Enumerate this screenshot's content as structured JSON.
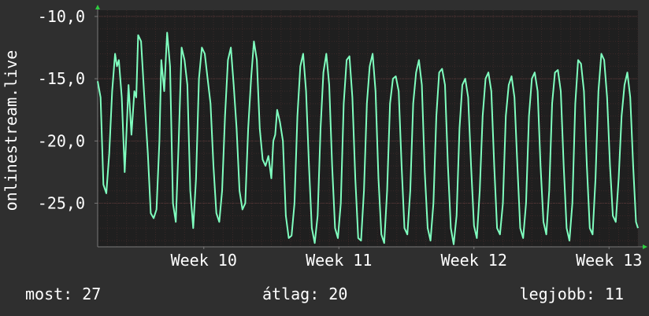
{
  "chart_data": {
    "type": "line",
    "ylabel": "onlinestream.live",
    "ylim": [
      -28.5,
      -9.5
    ],
    "yticks": [
      -10,
      -15,
      -20,
      -25
    ],
    "ytick_labels": [
      "-10,0",
      "-15,0",
      "-20,0",
      "-25,0"
    ],
    "xlim": [
      0,
      28
    ],
    "xticks": [
      {
        "x": 5.5,
        "label": "Week 10"
      },
      {
        "x": 12.5,
        "label": "Week 11"
      },
      {
        "x": 19.5,
        "label": "Week 12"
      },
      {
        "x": 26.5,
        "label": "Week 13"
      }
    ],
    "grid": true,
    "colors": {
      "line": "#7fffbf",
      "plot_bg": "#1f1f1f",
      "grid": "#3a2828",
      "axis": "#7a7a7a",
      "arrow": "#2ecc40"
    },
    "series": [
      {
        "values": [
          [
            0.0,
            -15.2
          ],
          [
            0.15,
            -16.5
          ],
          [
            0.3,
            -23.5
          ],
          [
            0.45,
            -24.2
          ],
          [
            0.6,
            -21
          ],
          [
            0.75,
            -16
          ],
          [
            0.9,
            -13
          ],
          [
            1.0,
            -14
          ],
          [
            1.1,
            -13.5
          ],
          [
            1.25,
            -16.5
          ],
          [
            1.4,
            -22.5
          ],
          [
            1.5,
            -19
          ],
          [
            1.6,
            -15.5
          ],
          [
            1.75,
            -19.5
          ],
          [
            1.9,
            -16
          ],
          [
            2.0,
            -16.5
          ],
          [
            2.1,
            -11.5
          ],
          [
            2.25,
            -12
          ],
          [
            2.4,
            -16
          ],
          [
            2.6,
            -21
          ],
          [
            2.75,
            -25.8
          ],
          [
            2.9,
            -26.2
          ],
          [
            3.05,
            -25.5
          ],
          [
            3.2,
            -20
          ],
          [
            3.3,
            -13.5
          ],
          [
            3.45,
            -16
          ],
          [
            3.6,
            -11.3
          ],
          [
            3.75,
            -14
          ],
          [
            3.9,
            -25
          ],
          [
            4.05,
            -26.5
          ],
          [
            4.2,
            -20
          ],
          [
            4.35,
            -12.5
          ],
          [
            4.5,
            -13.5
          ],
          [
            4.65,
            -15.5
          ],
          [
            4.8,
            -24
          ],
          [
            4.95,
            -27
          ],
          [
            5.1,
            -23
          ],
          [
            5.25,
            -15
          ],
          [
            5.4,
            -12.5
          ],
          [
            5.55,
            -13
          ],
          [
            5.7,
            -15
          ],
          [
            5.85,
            -17
          ],
          [
            6.0,
            -22
          ],
          [
            6.15,
            -25.8
          ],
          [
            6.3,
            -26.5
          ],
          [
            6.45,
            -24
          ],
          [
            6.6,
            -18
          ],
          [
            6.75,
            -13.5
          ],
          [
            6.9,
            -12.5
          ],
          [
            7.05,
            -15.5
          ],
          [
            7.2,
            -19
          ],
          [
            7.35,
            -24
          ],
          [
            7.5,
            -25.5
          ],
          [
            7.65,
            -25
          ],
          [
            7.8,
            -19
          ],
          [
            7.95,
            -15
          ],
          [
            8.1,
            -12
          ],
          [
            8.25,
            -13.5
          ],
          [
            8.4,
            -19
          ],
          [
            8.55,
            -21.5
          ],
          [
            8.7,
            -22
          ],
          [
            8.85,
            -21.2
          ],
          [
            9.0,
            -23
          ],
          [
            9.1,
            -20
          ],
          [
            9.2,
            -19.5
          ],
          [
            9.3,
            -17.5
          ],
          [
            9.45,
            -18.5
          ],
          [
            9.6,
            -20
          ],
          [
            9.75,
            -26
          ],
          [
            9.9,
            -27.8
          ],
          [
            10.05,
            -27.6
          ],
          [
            10.2,
            -25
          ],
          [
            10.35,
            -18
          ],
          [
            10.5,
            -14
          ],
          [
            10.65,
            -13
          ],
          [
            10.8,
            -16
          ],
          [
            10.95,
            -22
          ],
          [
            11.1,
            -27
          ],
          [
            11.25,
            -28.2
          ],
          [
            11.4,
            -26
          ],
          [
            11.55,
            -19
          ],
          [
            11.7,
            -14.5
          ],
          [
            11.85,
            -13
          ],
          [
            12.0,
            -15.5
          ],
          [
            12.15,
            -22
          ],
          [
            12.3,
            -27
          ],
          [
            12.45,
            -27.8
          ],
          [
            12.6,
            -25
          ],
          [
            12.75,
            -17
          ],
          [
            12.9,
            -13.5
          ],
          [
            13.05,
            -13.2
          ],
          [
            13.2,
            -16.5
          ],
          [
            13.35,
            -23
          ],
          [
            13.5,
            -27.8
          ],
          [
            13.65,
            -28
          ],
          [
            13.8,
            -24
          ],
          [
            13.95,
            -17
          ],
          [
            14.1,
            -14
          ],
          [
            14.25,
            -13
          ],
          [
            14.4,
            -16
          ],
          [
            14.55,
            -23
          ],
          [
            14.7,
            -27.5
          ],
          [
            14.85,
            -28.2
          ],
          [
            15.0,
            -24
          ],
          [
            15.15,
            -17
          ],
          [
            15.3,
            -15
          ],
          [
            15.45,
            -14.8
          ],
          [
            15.6,
            -16
          ],
          [
            15.75,
            -22
          ],
          [
            15.9,
            -27
          ],
          [
            16.05,
            -27.5
          ],
          [
            16.2,
            -24
          ],
          [
            16.35,
            -17
          ],
          [
            16.5,
            -14.5
          ],
          [
            16.65,
            -13.5
          ],
          [
            16.8,
            -15.5
          ],
          [
            16.95,
            -22.5
          ],
          [
            17.1,
            -27
          ],
          [
            17.25,
            -28
          ],
          [
            17.4,
            -25
          ],
          [
            17.55,
            -18
          ],
          [
            17.7,
            -14.5
          ],
          [
            17.85,
            -14.2
          ],
          [
            18.0,
            -15.5
          ],
          [
            18.15,
            -22
          ],
          [
            18.3,
            -27
          ],
          [
            18.45,
            -28.3
          ],
          [
            18.6,
            -26
          ],
          [
            18.75,
            -19
          ],
          [
            18.9,
            -15.5
          ],
          [
            19.05,
            -15
          ],
          [
            19.2,
            -16.5
          ],
          [
            19.35,
            -22
          ],
          [
            19.5,
            -26.8
          ],
          [
            19.65,
            -27.8
          ],
          [
            19.8,
            -24
          ],
          [
            19.95,
            -18
          ],
          [
            20.1,
            -15
          ],
          [
            20.25,
            -14.5
          ],
          [
            20.4,
            -16
          ],
          [
            20.55,
            -22
          ],
          [
            20.7,
            -27
          ],
          [
            20.85,
            -27.5
          ],
          [
            21.0,
            -25
          ],
          [
            21.15,
            -18
          ],
          [
            21.3,
            -15.5
          ],
          [
            21.45,
            -14.8
          ],
          [
            21.6,
            -16.5
          ],
          [
            21.75,
            -22
          ],
          [
            21.9,
            -27
          ],
          [
            22.05,
            -27.8
          ],
          [
            22.2,
            -25
          ],
          [
            22.35,
            -18
          ],
          [
            22.5,
            -15
          ],
          [
            22.65,
            -14.5
          ],
          [
            22.8,
            -16
          ],
          [
            22.95,
            -22
          ],
          [
            23.1,
            -26.5
          ],
          [
            23.25,
            -27.5
          ],
          [
            23.4,
            -24
          ],
          [
            23.55,
            -17
          ],
          [
            23.7,
            -14.5
          ],
          [
            23.85,
            -14.3
          ],
          [
            24.0,
            -16
          ],
          [
            24.15,
            -22
          ],
          [
            24.3,
            -27
          ],
          [
            24.45,
            -28
          ],
          [
            24.6,
            -25
          ],
          [
            24.75,
            -17
          ],
          [
            24.9,
            -13.5
          ],
          [
            25.05,
            -13.8
          ],
          [
            25.2,
            -16
          ],
          [
            25.35,
            -22
          ],
          [
            25.5,
            -27
          ],
          [
            25.65,
            -27.5
          ],
          [
            25.8,
            -23
          ],
          [
            25.95,
            -16
          ],
          [
            26.1,
            -13
          ],
          [
            26.25,
            -13.5
          ],
          [
            26.4,
            -16.5
          ],
          [
            26.55,
            -22
          ],
          [
            26.7,
            -26
          ],
          [
            26.85,
            -26.5
          ],
          [
            27.0,
            -23
          ],
          [
            27.15,
            -18
          ],
          [
            27.3,
            -15.5
          ],
          [
            27.45,
            -14.5
          ],
          [
            27.6,
            -16.5
          ],
          [
            27.75,
            -22
          ],
          [
            27.9,
            -26.5
          ],
          [
            28.0,
            -27
          ]
        ]
      }
    ]
  },
  "footer": {
    "last": "most: 27",
    "avg": "átlag: 20",
    "best": "legjobb: 11"
  }
}
